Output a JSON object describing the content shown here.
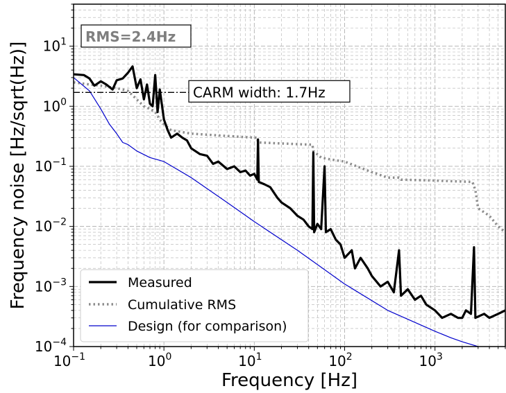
{
  "chart_data": {
    "type": "line",
    "title": "",
    "xlabel": "Frequency [Hz]",
    "ylabel": "Frequency noise [Hz/sqrt(Hz)]",
    "xscale": "log",
    "yscale": "log",
    "xlim": [
      0.1,
      6000
    ],
    "ylim": [
      0.0001,
      50
    ],
    "grid": true,
    "legend_position": "lower-left",
    "x_ticks": [
      {
        "value": 0.1,
        "base": "10",
        "exp": "−1"
      },
      {
        "value": 1,
        "base": "10",
        "exp": "0"
      },
      {
        "value": 10,
        "base": "10",
        "exp": "1"
      },
      {
        "value": 100,
        "base": "10",
        "exp": "2"
      },
      {
        "value": 1000,
        "base": "10",
        "exp": "3"
      }
    ],
    "y_ticks": [
      {
        "value": 0.0001,
        "base": "10",
        "exp": "−4"
      },
      {
        "value": 0.001,
        "base": "10",
        "exp": "−3"
      },
      {
        "value": 0.01,
        "base": "10",
        "exp": "−2"
      },
      {
        "value": 0.1,
        "base": "10",
        "exp": "−1"
      },
      {
        "value": 1,
        "base": "10",
        "exp": "0"
      },
      {
        "value": 10,
        "base": "10",
        "exp": "1"
      }
    ],
    "annotations": {
      "rms_box": "RMS=2.4Hz",
      "carm_label": "CARM width: 1.7Hz",
      "carm_value": 1.7
    },
    "series": [
      {
        "name": "Measured",
        "color": "#000000",
        "style": "solid",
        "points": [
          [
            0.1,
            3.4
          ],
          [
            0.13,
            3.3
          ],
          [
            0.15,
            2.9
          ],
          [
            0.17,
            2.2
          ],
          [
            0.2,
            2.6
          ],
          [
            0.23,
            2.3
          ],
          [
            0.27,
            1.9
          ],
          [
            0.3,
            2.7
          ],
          [
            0.35,
            2.9
          ],
          [
            0.4,
            3.6
          ],
          [
            0.45,
            4.6
          ],
          [
            0.5,
            2.0
          ],
          [
            0.55,
            2.8
          ],
          [
            0.6,
            1.3
          ],
          [
            0.65,
            2.3
          ],
          [
            0.7,
            1.1
          ],
          [
            0.75,
            1.0
          ],
          [
            0.8,
            3.3
          ],
          [
            0.85,
            0.8
          ],
          [
            0.9,
            1.9
          ],
          [
            1.0,
            0.6
          ],
          [
            1.1,
            0.4
          ],
          [
            1.2,
            0.3
          ],
          [
            1.4,
            0.35
          ],
          [
            1.6,
            0.3
          ],
          [
            1.8,
            0.27
          ],
          [
            2.0,
            0.2
          ],
          [
            2.5,
            0.16
          ],
          [
            3.0,
            0.15
          ],
          [
            3.5,
            0.11
          ],
          [
            4.0,
            0.12
          ],
          [
            5.0,
            0.09
          ],
          [
            6.0,
            0.1
          ],
          [
            7.0,
            0.08
          ],
          [
            8.0,
            0.085
          ],
          [
            9.0,
            0.07
          ],
          [
            10.0,
            0.075
          ],
          [
            10.8,
            0.06
          ],
          [
            11.0,
            0.28
          ],
          [
            11.2,
            0.055
          ],
          [
            13.0,
            0.05
          ],
          [
            15.0,
            0.045
          ],
          [
            18.0,
            0.03
          ],
          [
            20.0,
            0.025
          ],
          [
            25.0,
            0.02
          ],
          [
            30.0,
            0.015
          ],
          [
            35.0,
            0.013
          ],
          [
            40.0,
            0.01
          ],
          [
            44.0,
            0.009
          ],
          [
            45.0,
            0.17
          ],
          [
            46.0,
            0.008
          ],
          [
            50.0,
            0.011
          ],
          [
            55.0,
            0.009
          ],
          [
            60.0,
            0.1
          ],
          [
            62.0,
            0.008
          ],
          [
            70.0,
            0.009
          ],
          [
            80.0,
            0.006
          ],
          [
            90.0,
            0.005
          ],
          [
            100.0,
            0.003
          ],
          [
            120.0,
            0.004
          ],
          [
            130.0,
            0.002
          ],
          [
            150.0,
            0.003
          ],
          [
            180.0,
            0.002
          ],
          [
            200.0,
            0.0015
          ],
          [
            250.0,
            0.001
          ],
          [
            300.0,
            0.0012
          ],
          [
            350.0,
            0.0008
          ],
          [
            400.0,
            0.004
          ],
          [
            420.0,
            0.0007
          ],
          [
            500.0,
            0.0009
          ],
          [
            600.0,
            0.0006
          ],
          [
            700.0,
            0.0007
          ],
          [
            800.0,
            0.0005
          ],
          [
            1000.0,
            0.0004
          ],
          [
            1200.0,
            0.0003
          ],
          [
            1500.0,
            0.00035
          ],
          [
            1800.0,
            0.0003
          ],
          [
            2000.0,
            0.0003
          ],
          [
            2200.0,
            0.0004
          ],
          [
            2500.0,
            0.00035
          ],
          [
            2700.0,
            0.0045
          ],
          [
            2800.0,
            0.0003
          ],
          [
            3500.0,
            0.00035
          ],
          [
            4000.0,
            0.0003
          ],
          [
            5000.0,
            0.00035
          ],
          [
            6000.0,
            0.0004
          ]
        ]
      },
      {
        "name": "Cumulative RMS",
        "color": "#8c8c8c",
        "style": "dotted",
        "points": [
          [
            0.1,
            2.5
          ],
          [
            0.15,
            2.3
          ],
          [
            0.2,
            2.2
          ],
          [
            0.3,
            2.0
          ],
          [
            0.4,
            1.8
          ],
          [
            0.5,
            1.3
          ],
          [
            0.6,
            1.0
          ],
          [
            0.7,
            0.9
          ],
          [
            0.8,
            0.8
          ],
          [
            0.9,
            0.6
          ],
          [
            1.0,
            0.5
          ],
          [
            1.2,
            0.4
          ],
          [
            2.0,
            0.35
          ],
          [
            5.0,
            0.32
          ],
          [
            10.0,
            0.3
          ],
          [
            10.8,
            0.3
          ],
          [
            11.0,
            0.25
          ],
          [
            20.0,
            0.24
          ],
          [
            40.0,
            0.23
          ],
          [
            44.0,
            0.23
          ],
          [
            45.0,
            0.18
          ],
          [
            55.0,
            0.14
          ],
          [
            70.0,
            0.13
          ],
          [
            100.0,
            0.12
          ],
          [
            200.0,
            0.08
          ],
          [
            300.0,
            0.065
          ],
          [
            400.0,
            0.065
          ],
          [
            420.0,
            0.06
          ],
          [
            1000.0,
            0.058
          ],
          [
            2600.0,
            0.055
          ],
          [
            2800.0,
            0.04
          ],
          [
            3000.0,
            0.02
          ],
          [
            4000.0,
            0.015
          ],
          [
            5000.0,
            0.01
          ],
          [
            6000.0,
            0.008
          ]
        ]
      },
      {
        "name": "Design (for comparison)",
        "color": "#0000cc",
        "style": "solid",
        "points": [
          [
            0.1,
            3.0
          ],
          [
            0.15,
            1.8
          ],
          [
            0.2,
            0.9
          ],
          [
            0.25,
            0.5
          ],
          [
            0.3,
            0.35
          ],
          [
            0.35,
            0.25
          ],
          [
            0.4,
            0.23
          ],
          [
            0.5,
            0.18
          ],
          [
            0.7,
            0.14
          ],
          [
            1.0,
            0.12
          ],
          [
            2.0,
            0.065
          ],
          [
            5.0,
            0.025
          ],
          [
            10.0,
            0.012
          ],
          [
            30.0,
            0.004
          ],
          [
            100.0,
            0.0011
          ],
          [
            300.0,
            0.0004
          ],
          [
            1000.0,
            0.00018
          ],
          [
            1500.0,
            0.00014
          ],
          [
            2000.0,
            0.00012
          ],
          [
            3000.0,
            0.0001
          ]
        ]
      }
    ]
  }
}
